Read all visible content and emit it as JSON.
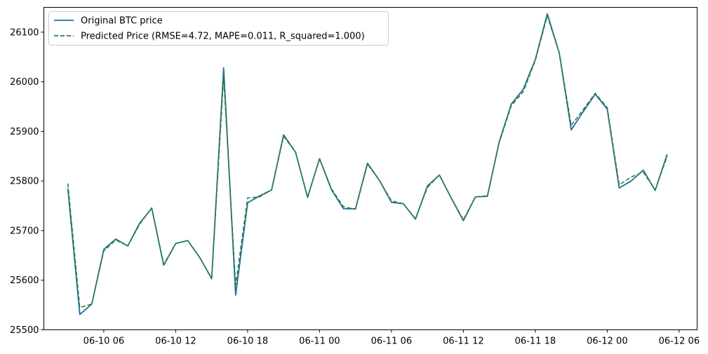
{
  "chart_data": {
    "type": "line",
    "title": "",
    "xlabel": "",
    "ylabel": "",
    "ylim": [
      25500,
      26150
    ],
    "xlim": [
      "2023-06-10 01:00",
      "2023-06-12 07:30"
    ],
    "grid": false,
    "legend": "upper-left",
    "y_ticks": [
      25500,
      25600,
      25700,
      25800,
      25900,
      26000,
      26100
    ],
    "x_ticks": [
      {
        "value": "2023-06-10 06:00",
        "label": "06-10 06"
      },
      {
        "value": "2023-06-10 12:00",
        "label": "06-10 12"
      },
      {
        "value": "2023-06-10 18:00",
        "label": "06-10 18"
      },
      {
        "value": "2023-06-11 00:00",
        "label": "06-11 00"
      },
      {
        "value": "2023-06-11 06:00",
        "label": "06-11 06"
      },
      {
        "value": "2023-06-11 12:00",
        "label": "06-11 12"
      },
      {
        "value": "2023-06-11 18:00",
        "label": "06-11 18"
      },
      {
        "value": "2023-06-12 00:00",
        "label": "06-12 00"
      },
      {
        "value": "2023-06-12 06:00",
        "label": "06-12 06"
      }
    ],
    "x": [
      "2023-06-10 03:00",
      "2023-06-10 04:00",
      "2023-06-10 05:00",
      "2023-06-10 06:00",
      "2023-06-10 07:00",
      "2023-06-10 08:00",
      "2023-06-10 09:00",
      "2023-06-10 10:00",
      "2023-06-10 11:00",
      "2023-06-10 12:00",
      "2023-06-10 13:00",
      "2023-06-10 14:00",
      "2023-06-10 15:00",
      "2023-06-10 16:00",
      "2023-06-10 17:00",
      "2023-06-10 18:00",
      "2023-06-10 19:00",
      "2023-06-10 20:00",
      "2023-06-10 21:00",
      "2023-06-10 22:00",
      "2023-06-10 23:00",
      "2023-06-11 00:00",
      "2023-06-11 01:00",
      "2023-06-11 02:00",
      "2023-06-11 03:00",
      "2023-06-11 04:00",
      "2023-06-11 05:00",
      "2023-06-11 06:00",
      "2023-06-11 07:00",
      "2023-06-11 08:00",
      "2023-06-11 09:00",
      "2023-06-11 10:00",
      "2023-06-11 11:00",
      "2023-06-11 12:00",
      "2023-06-11 13:00",
      "2023-06-11 14:00",
      "2023-06-11 15:00",
      "2023-06-11 16:00",
      "2023-06-11 17:00",
      "2023-06-11 18:00",
      "2023-06-11 19:00",
      "2023-06-11 20:00",
      "2023-06-11 21:00",
      "2023-06-11 22:00",
      "2023-06-11 23:00",
      "2023-06-12 00:00",
      "2023-06-12 01:00",
      "2023-06-12 02:00",
      "2023-06-12 03:00",
      "2023-06-12 04:00",
      "2023-06-12 05:00"
    ],
    "series": [
      {
        "name": "Original BTC price",
        "color": "#1f6f9f",
        "style": "solid",
        "values": [
          25785,
          25531,
          25552,
          25662,
          25683,
          25669,
          25715,
          25745,
          25630,
          25674,
          25680,
          25646,
          25603,
          26028,
          25570,
          25756,
          25770,
          25782,
          25893,
          25858,
          25767,
          25845,
          25782,
          25744,
          25744,
          25836,
          25801,
          25757,
          25754,
          25723,
          25790,
          25812,
          25765,
          25720,
          25768,
          25769,
          25880,
          25955,
          25985,
          26045,
          26137,
          26058,
          25903,
          25940,
          25975,
          25945,
          25786,
          25800,
          25822,
          25781,
          25854
        ]
      },
      {
        "name": "Predicted Price (RMSE=4.72, MAPE=0.011, R_squared=1.000)",
        "color": "#2e7d32",
        "style": "dashed",
        "values": [
          25795,
          25545,
          25552,
          25659,
          25681,
          25669,
          25713,
          25746,
          25632,
          25674,
          25680,
          25646,
          25604,
          26010,
          25590,
          25766,
          25768,
          25782,
          25890,
          25858,
          25768,
          25845,
          25784,
          25748,
          25743,
          25834,
          25801,
          25760,
          25754,
          25724,
          25787,
          25812,
          25765,
          25722,
          25768,
          25770,
          25878,
          25952,
          25980,
          26043,
          26133,
          26058,
          25912,
          25944,
          25977,
          25948,
          25792,
          25808,
          25818,
          25782,
          25850
        ]
      }
    ]
  }
}
